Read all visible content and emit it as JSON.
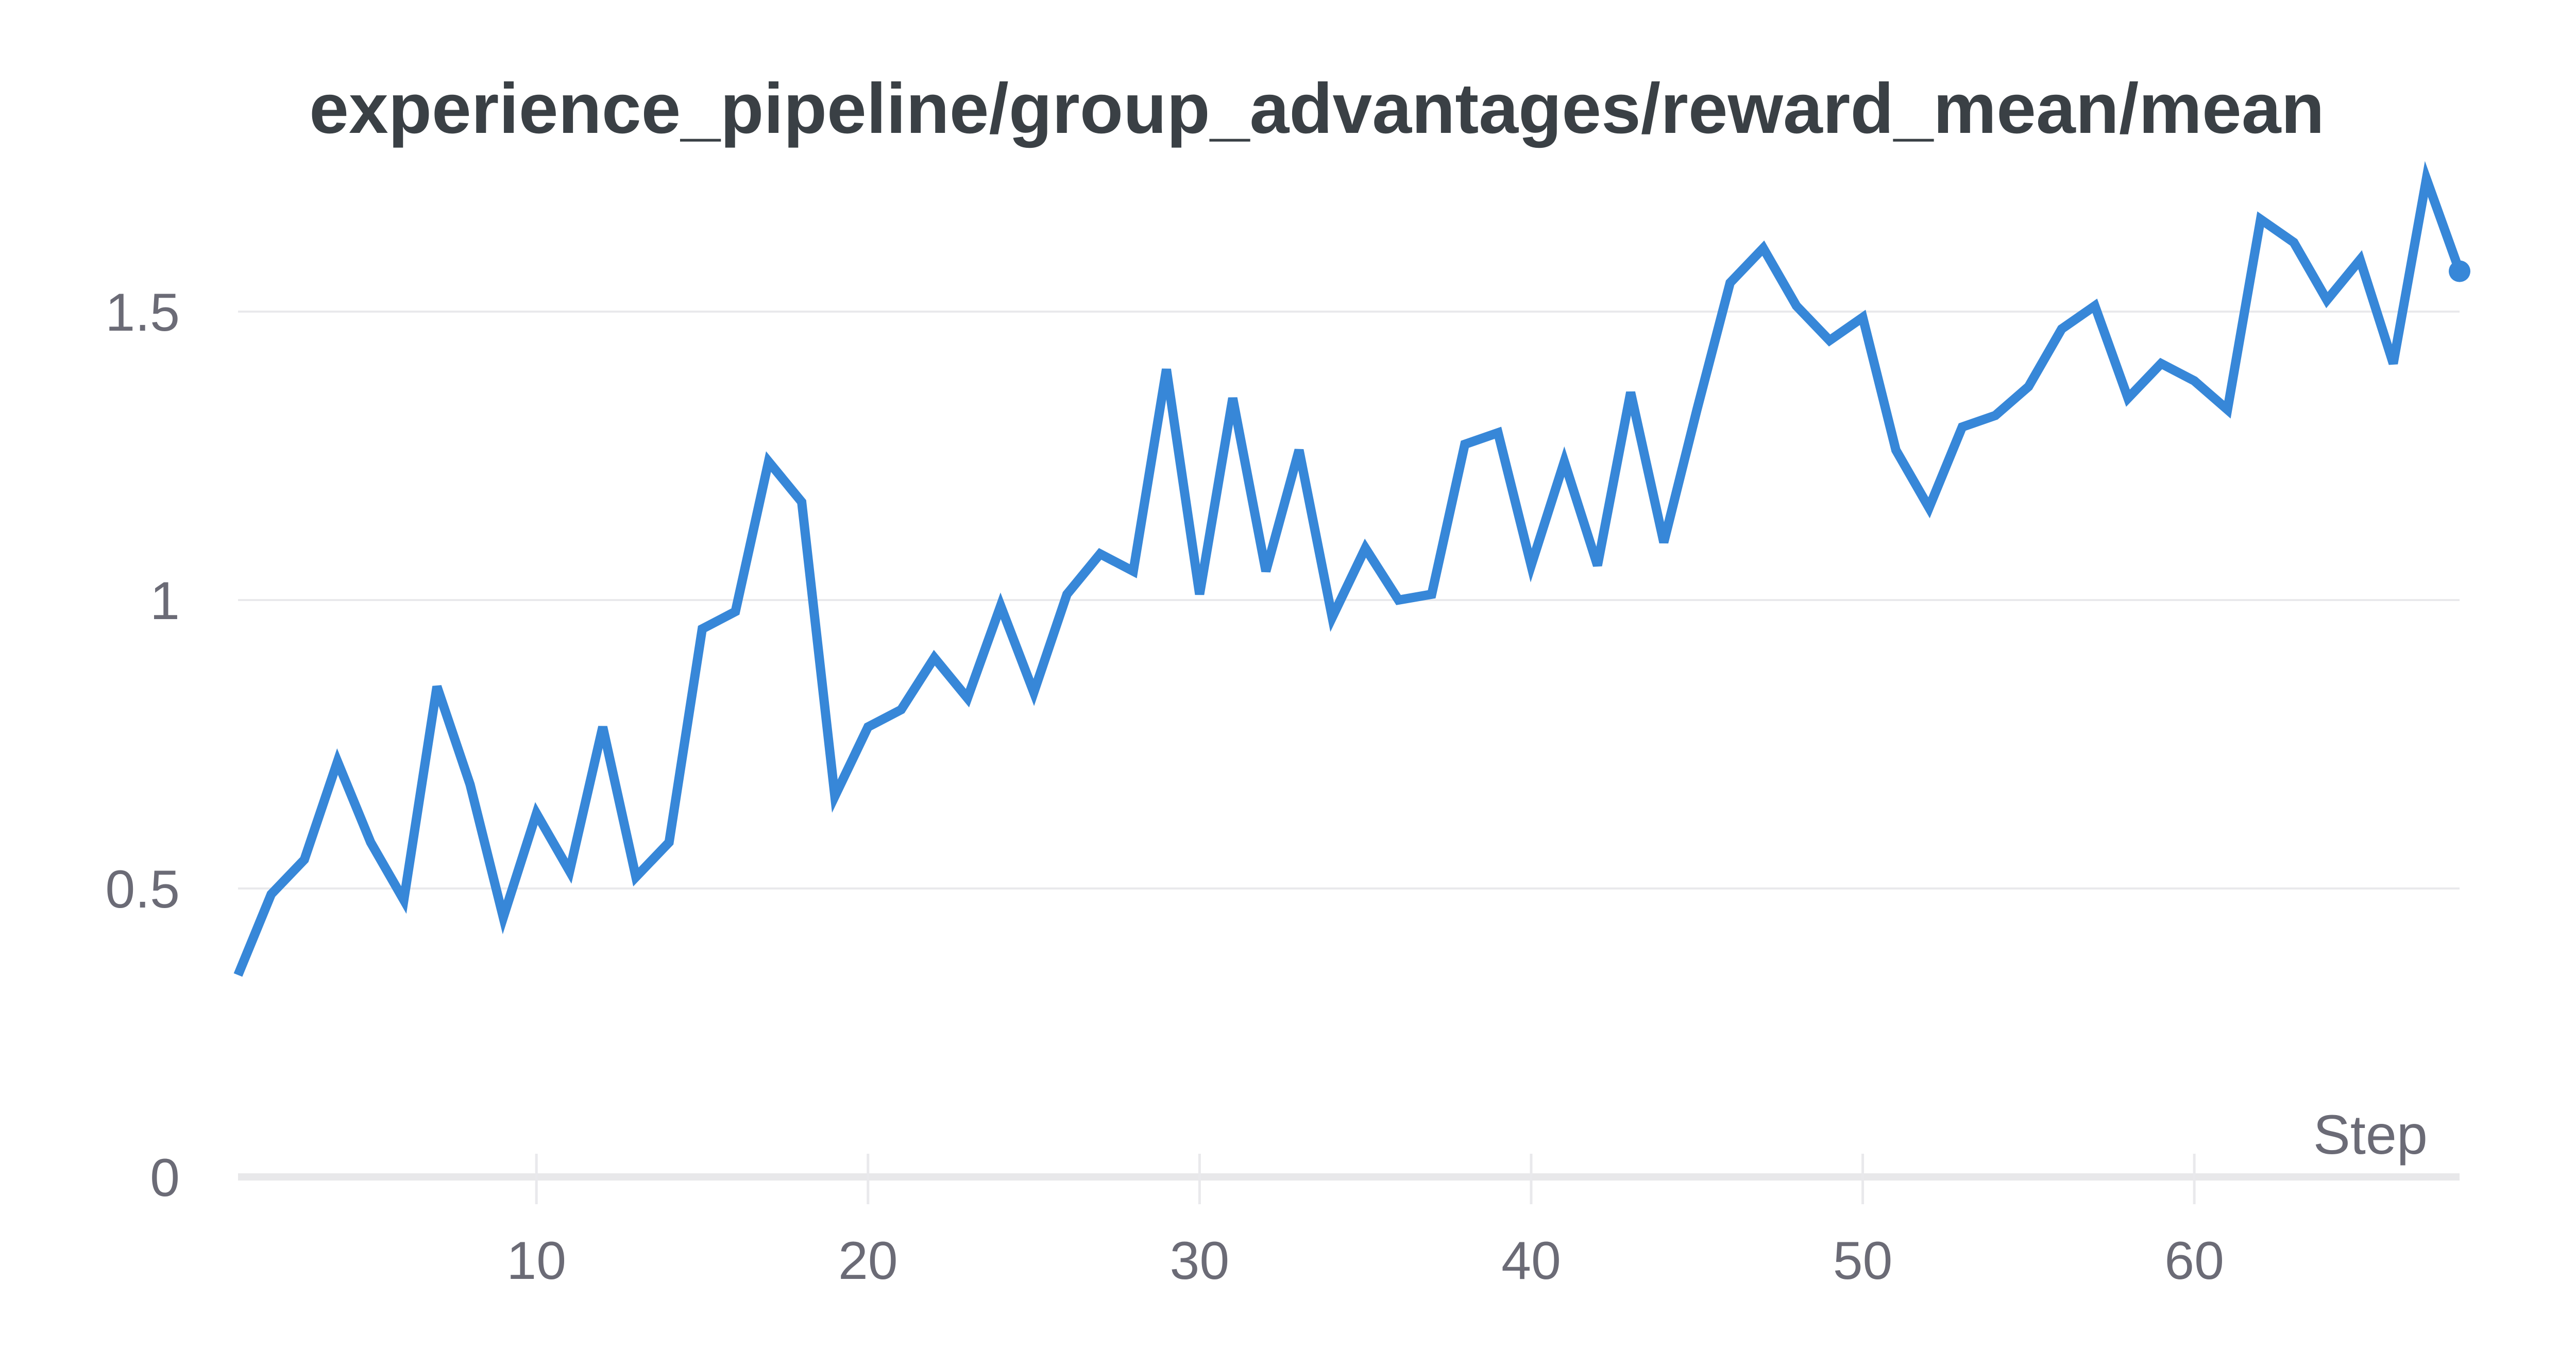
{
  "chart_data": {
    "type": "line",
    "title": "experience_pipeline/group_advantages/reward_mean/mean",
    "xlabel": "Step",
    "ylabel": "",
    "x": [
      1,
      2,
      3,
      4,
      5,
      6,
      7,
      8,
      9,
      10,
      11,
      12,
      13,
      14,
      15,
      16,
      17,
      18,
      19,
      20,
      21,
      22,
      23,
      24,
      25,
      26,
      27,
      28,
      29,
      30,
      31,
      32,
      33,
      34,
      35,
      36,
      37,
      38,
      39,
      40,
      41,
      42,
      43,
      44,
      45,
      46,
      47,
      48,
      49,
      50,
      51,
      52,
      53,
      54,
      55,
      56,
      57,
      58,
      59,
      60,
      61,
      62,
      63,
      64,
      65,
      66,
      67,
      68
    ],
    "series": [
      {
        "name": "reward_mean/mean",
        "values": [
          0.35,
          0.49,
          0.55,
          0.72,
          0.58,
          0.48,
          0.85,
          0.68,
          0.45,
          0.63,
          0.53,
          0.78,
          0.52,
          0.58,
          0.95,
          0.98,
          1.24,
          1.17,
          0.66,
          0.78,
          0.81,
          0.9,
          0.83,
          0.99,
          0.84,
          1.01,
          1.08,
          1.05,
          1.4,
          1.01,
          1.35,
          1.05,
          1.26,
          0.97,
          1.09,
          1.0,
          1.01,
          1.27,
          1.29,
          1.06,
          1.24,
          1.06,
          1.36,
          1.1,
          1.33,
          1.55,
          1.61,
          1.51,
          1.45,
          1.49,
          1.26,
          1.16,
          1.3,
          1.32,
          1.37,
          1.47,
          1.51,
          1.35,
          1.41,
          1.38,
          1.33,
          1.66,
          1.62,
          1.52,
          1.59,
          1.41,
          1.73,
          1.57
        ]
      }
    ],
    "x_ticks": [
      10,
      20,
      30,
      40,
      50,
      60
    ],
    "y_ticks": [
      0,
      0.5,
      1,
      1.5
    ],
    "y_tick_labels": [
      "0",
      "0.5",
      "1",
      "1.5"
    ],
    "xlim": [
      1,
      68
    ],
    "ylim": [
      0,
      1.77
    ],
    "grid": "horizontal-only",
    "legend": "none",
    "last_point_marker": true,
    "colors": {
      "background": "#ffffff",
      "line": "#3787d8",
      "marker": "#3787d8",
      "gridline": "#e9e9ec",
      "axis_bar": "#e8e8ea",
      "tick_label": "#6b6b76",
      "title": "#3a4045"
    }
  }
}
